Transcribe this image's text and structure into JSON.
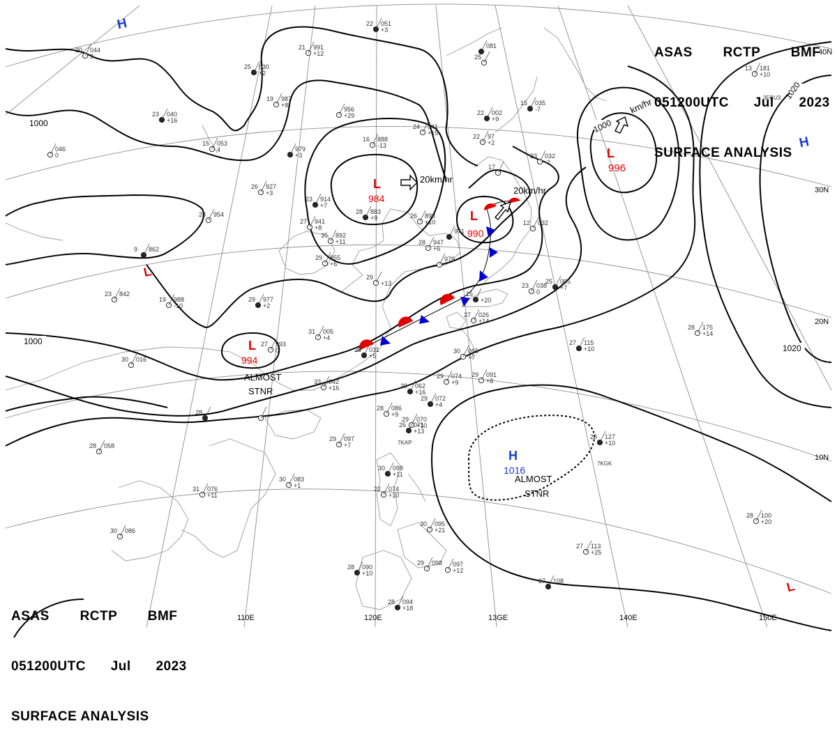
{
  "header": {
    "line1": "ASAS RCTP BMF",
    "line2": "051200UTC Jul 2023",
    "line3": "SURFACE ANALYSIS"
  },
  "isobars": {
    "label_1000": "1000",
    "label_1020": "1020"
  },
  "lat_labels": [
    "30N",
    "20N",
    "10N",
    "40N"
  ],
  "lon_labels": [
    "110E",
    "120E",
    "13GE",
    "140E",
    "150E"
  ],
  "systems": {
    "low_984": {
      "symbol": "L",
      "value": "984",
      "motion": "20km/hr"
    },
    "low_990": {
      "symbol": "L",
      "value": "990",
      "motion": "20km/hr"
    },
    "low_996": {
      "symbol": "L",
      "value": "996",
      "motion": "km/hr"
    },
    "low_994": {
      "symbol": "L",
      "value": "994",
      "note": "ALMOST STNR"
    },
    "low_west": {
      "symbol": "L"
    },
    "low_se": {
      "symbol": "L"
    },
    "high_1016": {
      "symbol": "H",
      "value": "1016",
      "note": "ALMOST STNR"
    },
    "high_nw": {
      "symbol": "H"
    },
    "high_ne": {
      "symbol": "H"
    }
  },
  "stations": [
    {
      "t": "22",
      "p": "051",
      "d": "+3"
    },
    {
      "t": "21",
      "p": "991",
      "d": "+12"
    },
    {
      "t": "20",
      "p": "044",
      "d": "3"
    },
    {
      "t": "25",
      "p": "030",
      "d": "+2"
    },
    {
      "t": "19",
      "p": "987",
      "d": "+8"
    },
    {
      "t": "",
      "p": "956",
      "d": "+29"
    },
    {
      "t": "23",
      "p": "040",
      "d": "+16"
    },
    {
      "t": "15",
      "p": "053",
      "d": "4"
    },
    {
      "t": "",
      "p": "046",
      "d": "0"
    },
    {
      "t": "",
      "p": "979",
      "d": "+3"
    },
    {
      "t": "24",
      "p": "941",
      "d": "+15"
    },
    {
      "t": "16",
      "p": "888",
      "d": "-13"
    },
    {
      "t": "22",
      "p": "002",
      "d": "+9"
    },
    {
      "t": "25",
      "p": "",
      "d": ""
    },
    {
      "t": "22",
      "p": "97",
      "d": "+2"
    },
    {
      "t": "15",
      "p": "035",
      "d": "-7"
    },
    {
      "t": "23",
      "p": "032",
      "d": "-2"
    },
    {
      "t": "26",
      "p": "927",
      "d": "+3"
    },
    {
      "t": "23",
      "p": "914",
      "d": "+7"
    },
    {
      "t": "27",
      "p": "941",
      "d": "+8"
    },
    {
      "t": "28",
      "p": "954",
      "d": ""
    },
    {
      "t": "28",
      "p": "883",
      "d": "+9"
    },
    {
      "t": "26",
      "p": "898",
      "d": "+10"
    },
    {
      "t": "35",
      "p": "892",
      "d": "+11"
    },
    {
      "t": "",
      "p": "971",
      "d": ""
    },
    {
      "t": "28",
      "p": "947",
      "d": "+6"
    },
    {
      "t": "29",
      "p": "955",
      "d": "+6"
    },
    {
      "t": "9",
      "p": "862",
      "d": ""
    },
    {
      "t": "23",
      "p": "842",
      "d": ""
    },
    {
      "t": "19",
      "p": "988",
      "d": "-10"
    },
    {
      "t": "29",
      "p": "977",
      "d": "+2"
    },
    {
      "t": "29",
      "p": "",
      "d": "+13"
    },
    {
      "t": "",
      "p": "979",
      "d": ""
    },
    {
      "t": "15",
      "p": "",
      "d": "+20"
    },
    {
      "t": "27",
      "p": "026",
      "d": "+14"
    },
    {
      "t": "23",
      "p": "038",
      "d": "0"
    },
    {
      "t": "25",
      "p": "005",
      "d": "+7"
    },
    {
      "t": "31",
      "p": "005",
      "d": "+4"
    },
    {
      "t": "27",
      "p": "993",
      "d": "0"
    },
    {
      "t": "28",
      "p": "031",
      "d": "+5"
    },
    {
      "t": "30",
      "p": "016",
      "d": ""
    },
    {
      "t": "30",
      "p": "055",
      "d": "+7"
    },
    {
      "t": "27",
      "p": "115",
      "d": "+10"
    },
    {
      "t": "28",
      "p": "175",
      "d": "+14"
    },
    {
      "t": "33",
      "p": "042",
      "d": "+16"
    },
    {
      "t": "29",
      "p": "062",
      "d": "+16"
    },
    {
      "t": "29",
      "p": "074",
      "d": "+9"
    },
    {
      "t": "29",
      "p": "091",
      "d": "+8"
    },
    {
      "t": "29",
      "p": "072",
      "d": "+4"
    },
    {
      "t": "28",
      "p": "086",
      "d": "+9"
    },
    {
      "t": "29",
      "p": "070",
      "d": "+10"
    },
    {
      "t": "26",
      "p": "071",
      "d": "+13"
    },
    {
      "t": "29",
      "p": "097",
      "d": "+7"
    },
    {
      "t": "28",
      "p": "058",
      "d": ""
    },
    {
      "t": "28",
      "p": "127",
      "d": "+10"
    },
    {
      "t": "30",
      "p": "083",
      "d": "+1"
    },
    {
      "t": "31",
      "p": "076",
      "d": "+11"
    },
    {
      "t": "30",
      "p": "099",
      "d": "+11"
    },
    {
      "t": "22",
      "p": "074",
      "d": "+10"
    },
    {
      "t": "30",
      "p": "095",
      "d": "+21"
    },
    {
      "t": "28",
      "p": "090",
      "d": "+10"
    },
    {
      "t": "29",
      "p": "098",
      "d": ""
    },
    {
      "t": "",
      "p": "097",
      "d": "+12"
    },
    {
      "t": "28",
      "p": "094",
      "d": "+18"
    },
    {
      "t": "30",
      "p": "086",
      "d": ""
    },
    {
      "t": "27",
      "p": "113",
      "d": "+25"
    },
    {
      "t": "27",
      "p": "108",
      "d": ""
    },
    {
      "t": "28",
      "p": "100",
      "d": "+20"
    },
    {
      "t": "13",
      "p": "181",
      "d": "+10"
    },
    {
      "t": "",
      "p": "081",
      "d": ""
    },
    {
      "t": "17",
      "p": "",
      "d": ""
    },
    {
      "t": "12",
      "p": "032",
      "d": ""
    },
    {
      "t": "28",
      "p": "",
      "d": ""
    },
    {
      "t": "",
      "p": "",
      "d": ""
    }
  ],
  "ship_codes": [
    "7KAP",
    "7KGK",
    "3FCU3"
  ]
}
